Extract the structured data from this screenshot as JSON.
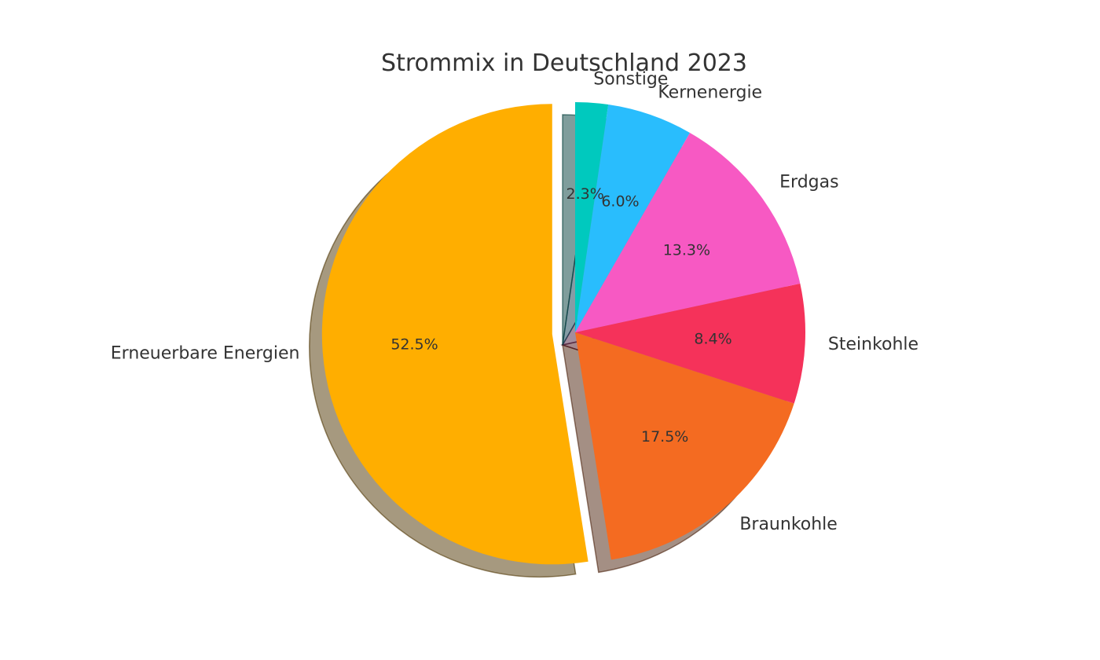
{
  "chart_data": {
    "type": "pie",
    "title": "Strommix in Deutschland 2023",
    "categories": [
      "Erneuerbare Energien",
      "Braunkohle",
      "Steinkohle",
      "Erdgas",
      "Kernenergie",
      "Sonstige"
    ],
    "values": [
      52.5,
      17.5,
      8.4,
      13.3,
      6.0,
      2.3
    ],
    "pct_labels": [
      "52.5%",
      "17.5%",
      "8.4%",
      "13.3%",
      "6.0%",
      "2.3%"
    ],
    "colors": [
      "#FFAE00",
      "#F46B21",
      "#F5325A",
      "#F759C3",
      "#29BDFD",
      "#00C9BE"
    ],
    "exploded": [
      "Erneuerbare Energien"
    ],
    "start_angle": 90,
    "counterclockwise": true,
    "shadow": true
  }
}
